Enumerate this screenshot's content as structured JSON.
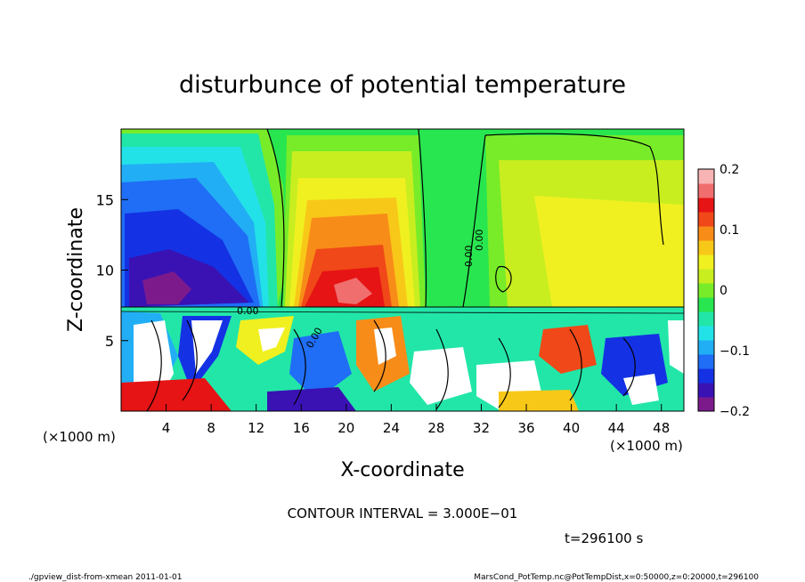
{
  "chart_data": {
    "type": "heatmap",
    "title": "disturbunce of potential temperature",
    "xlabel": "X-coordinate",
    "ylabel": "Z-coordinate",
    "x_unit_left": "(×1000 m)",
    "x_unit_right": "(×1000 m)",
    "xlim": [
      0,
      50
    ],
    "ylim": [
      0,
      20
    ],
    "xticks": [
      4,
      8,
      12,
      16,
      20,
      24,
      28,
      32,
      36,
      40,
      44,
      48
    ],
    "yticks": [
      5,
      10,
      15
    ],
    "colorbar": {
      "range": [
        -0.2,
        0.2
      ],
      "ticks": [
        "0.2",
        "0.1",
        "0",
        "−0.1",
        "−0.2"
      ],
      "colors": [
        "#7c1a8c",
        "#3a12b4",
        "#1432e4",
        "#1f6ef5",
        "#22aef5",
        "#22e2e8",
        "#22e6a8",
        "#28e650",
        "#78ec28",
        "#c8ee20",
        "#f0f020",
        "#f8c818",
        "#f88c18",
        "#f04818",
        "#e61414",
        "#f06e6e",
        "#f8b4b4"
      ]
    },
    "contour_labels": [
      "0.00",
      "0.00",
      "0.00",
      "0.00"
    ],
    "contour_interval_text": "CONTOUR INTERVAL = 3.000E−01",
    "time_text": "t=296100 s",
    "footer_left": "./gpview_dist-from-xmean  2011-01-01",
    "footer_right": "MarsCond_PotTemp.nc@PotTempDist,x=0:50000,z=0:20000,t=296100"
  }
}
